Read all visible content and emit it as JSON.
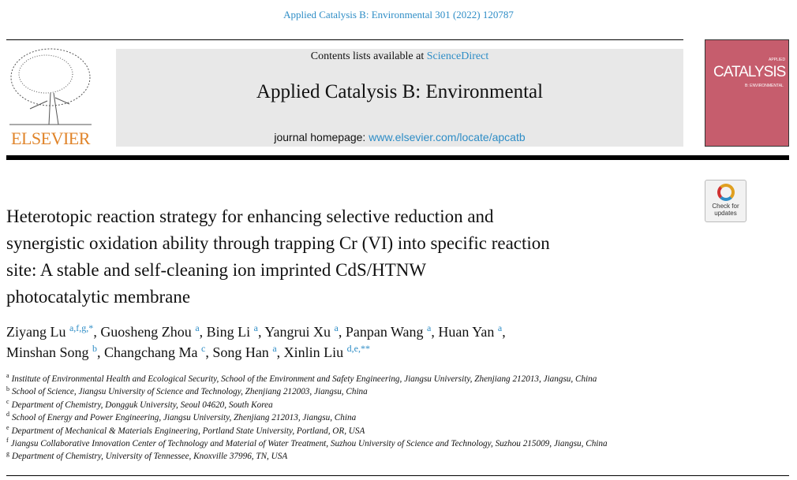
{
  "header": {
    "citation": "Applied Catalysis B: Environmental 301 (2022) 120787",
    "publisher_logo_text": "ELSEVIER",
    "contents_prefix": "Contents lists available at ",
    "contents_link": "ScienceDirect",
    "journal_title": "Applied Catalysis B: Environmental",
    "homepage_prefix": "journal homepage: ",
    "homepage_link": "www.elsevier.com/locate/apcatb",
    "cover_text": [
      "APPLIED",
      "CATALYSIS",
      "B: ENVIRONMENTAL"
    ],
    "check_updates": [
      "Check for",
      "updates"
    ]
  },
  "article": {
    "title_lines": [
      "Heterotopic reaction strategy for enhancing selective reduction and",
      "synergistic oxidation ability through trapping Cr (VI) into specific reaction",
      "site: A stable and self-cleaning ion imprinted CdS/HTNW",
      "photocatalytic membrane"
    ],
    "authors": [
      {
        "name": "Ziyang Lu",
        "sup": "a,f,g,*"
      },
      {
        "name": "Guosheng Zhou",
        "sup": "a"
      },
      {
        "name": "Bing Li",
        "sup": "a"
      },
      {
        "name": "Yangrui Xu",
        "sup": "a"
      },
      {
        "name": "Panpan Wang",
        "sup": "a"
      },
      {
        "name": "Huan Yan",
        "sup": "a"
      },
      {
        "name": "Minshan Song",
        "sup": "b"
      },
      {
        "name": "Changchang Ma",
        "sup": "c"
      },
      {
        "name": "Song Han",
        "sup": "a"
      },
      {
        "name": "Xinlin Liu",
        "sup": "d,e,**"
      }
    ],
    "affiliations": [
      {
        "key": "a",
        "text": "Institute of Environmental Health and Ecological Security, School of the Environment and Safety Engineering, Jiangsu University, Zhenjiang 212013, Jiangsu, China"
      },
      {
        "key": "b",
        "text": "School of Science, Jiangsu University of Science and Technology, Zhenjiang 212003, Jiangsu, China"
      },
      {
        "key": "c",
        "text": "Department of Chemistry, Dongguk University, Seoul 04620, South Korea"
      },
      {
        "key": "d",
        "text": "School of Energy and Power Engineering, Jiangsu University, Zhenjiang 212013, Jiangsu, China"
      },
      {
        "key": "e",
        "text": "Department of Mechanical & Materials Engineering, Portland State University, Portland, OR, USA"
      },
      {
        "key": "f",
        "text": "Jiangsu Collaborative Innovation Center of Technology and Material of Water Treatment, Suzhou University of Science and Technology, Suzhou 215009, Jiangsu, China"
      },
      {
        "key": "g",
        "text": "Department of Chemistry, University of Tennessee, Knoxville 37996, TN, USA"
      }
    ]
  },
  "colors": {
    "link": "#2e8dc6",
    "elsevier_orange": "#e0842a",
    "cover": "#c65d6d",
    "banner": "#e8e8e8"
  }
}
